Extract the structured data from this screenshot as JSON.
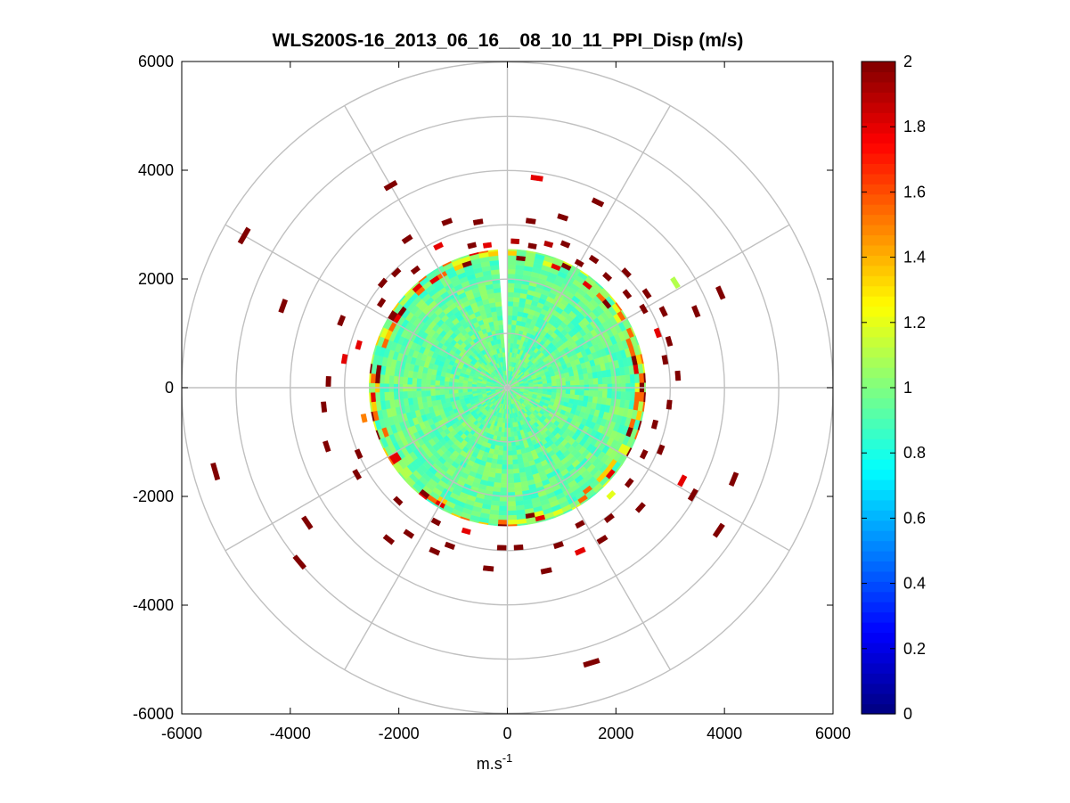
{
  "chart_data": {
    "type": "heatmap",
    "subtype": "polar-ppi",
    "title": "WLS200S-16_2013_06_16__08_10_11_PPI_Disp (m/s)",
    "xlabel": "m.s",
    "xlabel_superscript": "-1",
    "ylabel": "",
    "xlim": [
      -6000,
      6000
    ],
    "ylim": [
      -6000,
      6000
    ],
    "x_ticks": [
      "-6000",
      "-4000",
      "-2000",
      "0",
      "2000",
      "4000",
      "6000"
    ],
    "y_ticks": [
      "6000",
      "4000",
      "2000",
      "0",
      "-2000",
      "-4000",
      "-6000"
    ],
    "x_tick_values": [
      -6000,
      -4000,
      -2000,
      0,
      2000,
      4000,
      6000
    ],
    "y_tick_values": [
      6000,
      4000,
      2000,
      0,
      -2000,
      -4000,
      -6000
    ],
    "polar_grid": {
      "ring_radii": [
        1000,
        2000,
        3000,
        4000,
        5000,
        6000
      ],
      "spoke_angles_deg": [
        0,
        30,
        60,
        90,
        120,
        150,
        180,
        210,
        240,
        270,
        300,
        330
      ]
    },
    "field": {
      "max_range": 2550,
      "typical_value": 0.95,
      "gap_azimuth_deg": [
        355,
        2
      ],
      "edge_band_values": [
        1.1,
        1.2,
        1.35,
        1.55,
        1.8,
        2.0
      ]
    },
    "scatter_cells": [
      {
        "az": 3,
        "r": 2700,
        "v": 1.9
      },
      {
        "az": 10,
        "r": 2650,
        "v": 2.0
      },
      {
        "az": 16,
        "r": 2750,
        "v": 1.9
      },
      {
        "az": 22,
        "r": 2850,
        "v": 2.0
      },
      {
        "az": 30,
        "r": 2650,
        "v": 2.0
      },
      {
        "az": 34,
        "r": 2850,
        "v": 2.0
      },
      {
        "az": 42,
        "r": 2750,
        "v": 2.0
      },
      {
        "az": 46,
        "r": 3050,
        "v": 2.0
      },
      {
        "az": 52,
        "r": 2800,
        "v": 2.0
      },
      {
        "az": 56,
        "r": 3100,
        "v": 2.0
      },
      {
        "az": 60,
        "r": 2900,
        "v": 2.0
      },
      {
        "az": 64,
        "r": 3200,
        "v": 2.0
      },
      {
        "az": 70,
        "r": 2950,
        "v": 1.8
      },
      {
        "az": 74,
        "r": 3100,
        "v": 2.0
      },
      {
        "az": 58,
        "r": 3650,
        "v": 1.1
      },
      {
        "az": 68,
        "r": 3750,
        "v": 2.0
      },
      {
        "az": 66,
        "r": 4300,
        "v": 2.0
      },
      {
        "az": 80,
        "r": 2950,
        "v": 2.0
      },
      {
        "az": 86,
        "r": 3150,
        "v": 2.0
      },
      {
        "az": 96,
        "r": 3000,
        "v": 2.0
      },
      {
        "az": 104,
        "r": 2800,
        "v": 2.0
      },
      {
        "az": 112,
        "r": 3050,
        "v": 2.0
      },
      {
        "az": 116,
        "r": 2800,
        "v": 2.0
      },
      {
        "az": 118,
        "r": 3650,
        "v": 1.8
      },
      {
        "az": 120,
        "r": 3950,
        "v": 2.0
      },
      {
        "az": 112,
        "r": 4500,
        "v": 2.0
      },
      {
        "az": 124,
        "r": 4700,
        "v": 2.0
      },
      {
        "az": 128,
        "r": 2850,
        "v": 2.0
      },
      {
        "az": 132,
        "r": 3300,
        "v": 2.0
      },
      {
        "az": 136,
        "r": 2750,
        "v": 1.2
      },
      {
        "az": 142,
        "r": 3050,
        "v": 2.0
      },
      {
        "az": 148,
        "r": 3300,
        "v": 2.0
      },
      {
        "az": 152,
        "r": 2850,
        "v": 2.0
      },
      {
        "az": 156,
        "r": 3300,
        "v": 1.8
      },
      {
        "az": 162,
        "r": 3050,
        "v": 2.0
      },
      {
        "az": 168,
        "r": 3450,
        "v": 2.0
      },
      {
        "az": 163,
        "r": 5300,
        "v": 2.0
      },
      {
        "az": 176,
        "r": 2950,
        "v": 2.0
      },
      {
        "az": 182,
        "r": 2950,
        "v": 2.0
      },
      {
        "az": 186,
        "r": 3350,
        "v": 2.0
      },
      {
        "az": 196,
        "r": 2750,
        "v": 1.8
      },
      {
        "az": 200,
        "r": 3100,
        "v": 2.0
      },
      {
        "az": 204,
        "r": 3300,
        "v": 2.0
      },
      {
        "az": 208,
        "r": 2800,
        "v": 2.0
      },
      {
        "az": 214,
        "r": 3250,
        "v": 2.0
      },
      {
        "az": 218,
        "r": 3550,
        "v": 2.0
      },
      {
        "az": 224,
        "r": 2900,
        "v": 2.0
      },
      {
        "az": 230,
        "r": 5000,
        "v": 2.0
      },
      {
        "az": 236,
        "r": 4450,
        "v": 2.0
      },
      {
        "az": 240,
        "r": 3200,
        "v": 2.0
      },
      {
        "az": 246,
        "r": 3000,
        "v": 2.0
      },
      {
        "az": 252,
        "r": 3500,
        "v": 2.0
      },
      {
        "az": 258,
        "r": 2700,
        "v": 1.5
      },
      {
        "az": 264,
        "r": 3400,
        "v": 2.0
      },
      {
        "az": 254,
        "r": 5600,
        "v": 2.0
      },
      {
        "az": 272,
        "r": 3300,
        "v": 2.0
      },
      {
        "az": 280,
        "r": 3050,
        "v": 1.8
      },
      {
        "az": 286,
        "r": 2850,
        "v": 1.8
      },
      {
        "az": 292,
        "r": 3300,
        "v": 2.0
      },
      {
        "az": 290,
        "r": 4400,
        "v": 2.0
      },
      {
        "az": 300,
        "r": 5600,
        "v": 2.0
      },
      {
        "az": 304,
        "r": 2800,
        "v": 2.0
      },
      {
        "az": 310,
        "r": 3000,
        "v": 2.0
      },
      {
        "az": 316,
        "r": 2950,
        "v": 2.0
      },
      {
        "az": 322,
        "r": 2750,
        "v": 2.0
      },
      {
        "az": 326,
        "r": 3300,
        "v": 2.0
      },
      {
        "az": 330,
        "r": 4300,
        "v": 2.0
      },
      {
        "az": 334,
        "r": 2900,
        "v": 1.8
      },
      {
        "az": 340,
        "r": 3250,
        "v": 2.0
      },
      {
        "az": 346,
        "r": 2700,
        "v": 2.0
      },
      {
        "az": 350,
        "r": 3100,
        "v": 2.0
      },
      {
        "az": 352,
        "r": 2650,
        "v": 1.8
      },
      {
        "az": 8,
        "r": 3100,
        "v": 2.0
      },
      {
        "az": 18,
        "r": 3300,
        "v": 2.0
      },
      {
        "az": 26,
        "r": 3800,
        "v": 2.0
      },
      {
        "az": 8,
        "r": 3900,
        "v": 1.8
      }
    ],
    "colorbar": {
      "min": 0,
      "max": 2,
      "ticks": [
        "2",
        "1.8",
        "1.6",
        "1.4",
        "1.2",
        "1",
        "0.8",
        "0.6",
        "0.4",
        "0.2",
        "0"
      ],
      "tick_values": [
        2,
        1.8,
        1.6,
        1.4,
        1.2,
        1,
        0.8,
        0.6,
        0.4,
        0.2,
        0
      ],
      "colormap": "jet"
    },
    "colors": {
      "grid": "#c0c0c0",
      "axis": "#000000",
      "background": "#ffffff"
    }
  }
}
